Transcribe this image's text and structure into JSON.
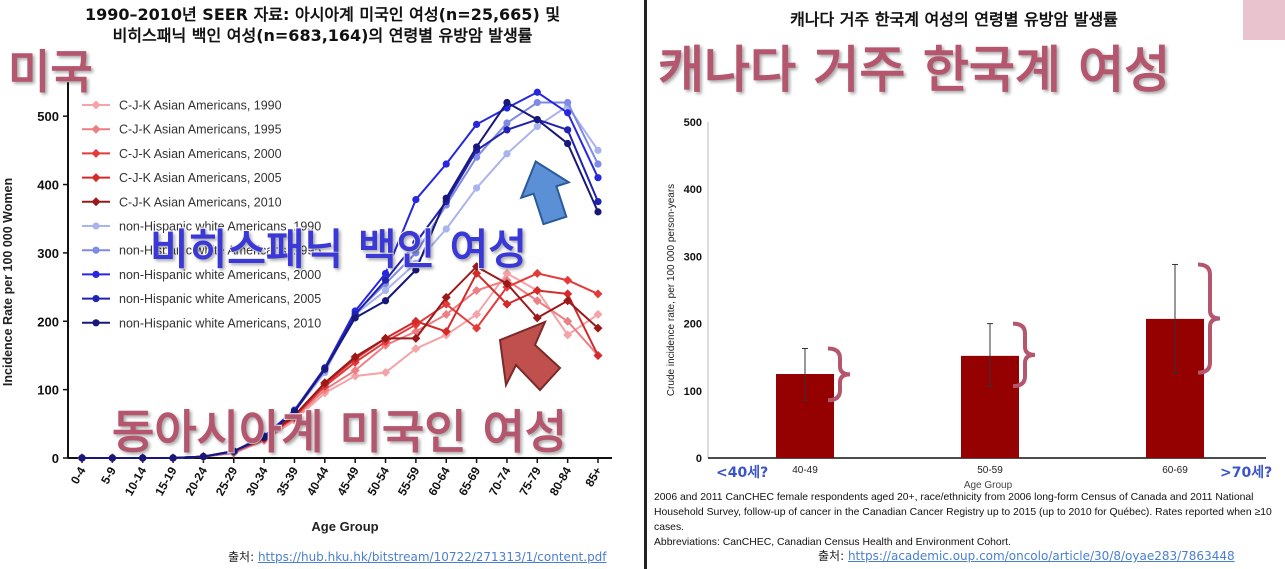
{
  "left": {
    "title_line1": "1990–2010년 SEER 자료: 아시아계 미국인 여성(n=25,665) 및",
    "title_line2": "비히스패닉 백인 여성(n=683,164)의 연령별 유방암 발생률",
    "label_country": "미국",
    "label_white": "비히스패닉 백인 여성",
    "label_asian": "동아시아계 미국인 여성",
    "source_prefix": "출처: ",
    "source_link": "https://hub.hku.hk/bitstream/10722/271313/1/content.pdf"
  },
  "right": {
    "title": "캐나다 거주 한국계 여성의 연령별 유방암 발생률",
    "label_country": "캐나다 거주 한국계 여성",
    "age_under": "<40세?",
    "age_over": ">70세?",
    "footnote_1": "2006 and 2011 CanCHEC female respondents aged 20+, race/ethnicity from 2006 long-form Census of Canada and 2011 National Household Survey, follow-up of cancer in the Canadian Cancer Registry up to 2015 (up to 2010 for Québec). Rates reported when ≥10 cases.",
    "footnote_2": "Abbreviations: CanCHEC, Canadian Census Health and Environment Cohort.",
    "source_prefix": "출처: ",
    "source_link": "https://academic.oup.com/oncolo/article/30/8/oyae283/7863448"
  },
  "chart_data": [
    {
      "type": "line",
      "xlabel": "Age Group",
      "ylabel": "Incidence Rate per 100 000 Women",
      "ylim": [
        0,
        550
      ],
      "yticks": [
        0,
        100,
        200,
        300,
        400,
        500
      ],
      "legend_position": "top-left",
      "categories": [
        "0-4",
        "5-9",
        "10-14",
        "15-19",
        "20-24",
        "25-29",
        "30-34",
        "35-39",
        "40-44",
        "45-49",
        "50-54",
        "55-59",
        "60-64",
        "65-69",
        "70-74",
        "75-79",
        "80-84",
        "85+"
      ],
      "series": [
        {
          "name": "C-J-K Asian Americans, 1990",
          "color": "#f4a3a8",
          "values": [
            0,
            0,
            0,
            0,
            2,
            7,
            25,
            55,
            95,
            120,
            125,
            160,
            180,
            210,
            270,
            245,
            180,
            210
          ]
        },
        {
          "name": "C-J-K Asian Americans, 1995",
          "color": "#ec7f84",
          "values": [
            0,
            0,
            0,
            0,
            2,
            8,
            27,
            58,
            100,
            128,
            165,
            185,
            210,
            245,
            260,
            230,
            200,
            150
          ]
        },
        {
          "name": "C-J-K Asian Americans, 2000",
          "color": "#e53a3a",
          "values": [
            0,
            0,
            0,
            0,
            2,
            8,
            28,
            60,
            105,
            140,
            170,
            195,
            225,
            190,
            250,
            270,
            260,
            240
          ]
        },
        {
          "name": "C-J-K Asian Americans, 2005",
          "color": "#d42a2a",
          "values": [
            0,
            0,
            0,
            0,
            2,
            9,
            28,
            62,
            108,
            145,
            175,
            200,
            185,
            270,
            225,
            245,
            240,
            150
          ]
        },
        {
          "name": "C-J-K Asian Americans, 2010",
          "color": "#9a1a1a",
          "values": [
            0,
            0,
            0,
            0,
            2,
            9,
            30,
            62,
            110,
            148,
            175,
            175,
            235,
            280,
            255,
            205,
            230,
            190
          ]
        },
        {
          "name": "non-Hispanic white Americans, 1990",
          "color": "#a9b3ee",
          "values": [
            0,
            0,
            0,
            0,
            2,
            9,
            30,
            68,
            125,
            210,
            245,
            285,
            335,
            395,
            445,
            485,
            515,
            450
          ]
        },
        {
          "name": "non-Hispanic white Americans, 1995",
          "color": "#7e8ae6",
          "values": [
            0,
            0,
            0,
            0,
            2,
            9,
            30,
            68,
            128,
            212,
            255,
            300,
            370,
            440,
            490,
            520,
            520,
            430
          ]
        },
        {
          "name": "non-Hispanic white Americans, 2000",
          "color": "#2727e0",
          "values": [
            0,
            0,
            0,
            0,
            2,
            10,
            32,
            70,
            132,
            215,
            270,
            378,
            430,
            488,
            512,
            535,
            505,
            410
          ]
        },
        {
          "name": "non-Hispanic white Americans, 2005",
          "color": "#2222b0",
          "values": [
            0,
            0,
            0,
            0,
            2,
            10,
            30,
            68,
            130,
            210,
            260,
            315,
            375,
            450,
            480,
            495,
            480,
            375
          ]
        },
        {
          "name": "non-Hispanic white Americans, 2010",
          "color": "#18187a",
          "values": [
            0,
            0,
            0,
            0,
            2,
            10,
            30,
            68,
            130,
            205,
            230,
            275,
            380,
            455,
            520,
            495,
            460,
            360
          ]
        }
      ]
    },
    {
      "type": "bar",
      "xlabel": "Age Group",
      "ylabel": "Crude incidence rate, per 100 000 person-years",
      "ylim": [
        0,
        500
      ],
      "yticks": [
        0,
        100,
        200,
        300,
        400,
        500
      ],
      "categories": [
        "40-49",
        "50-59",
        "60-69"
      ],
      "values": [
        125,
        152,
        207
      ],
      "error_low": [
        86,
        107,
        127
      ],
      "error_high": [
        163,
        200,
        288
      ],
      "color": "#950000"
    }
  ]
}
